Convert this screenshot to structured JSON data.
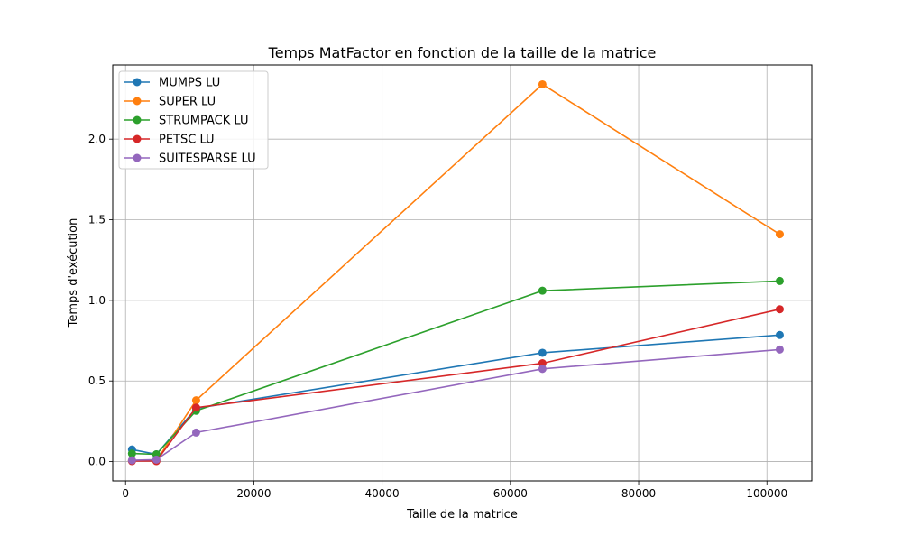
{
  "chart_data": {
    "type": "line",
    "title": "Temps MatFactor en fonction de la taille de la matrice",
    "xlabel": "Taille de la matrice",
    "ylabel": "Temps d'exécution",
    "xlim": [
      -2000,
      107000
    ],
    "ylim": [
      -0.12,
      2.46
    ],
    "xticks": [
      0,
      20000,
      40000,
      60000,
      80000,
      100000
    ],
    "xtick_labels": [
      "0",
      "20000",
      "40000",
      "60000",
      "80000",
      "100000"
    ],
    "yticks": [
      0.0,
      0.5,
      1.0,
      1.5,
      2.0
    ],
    "ytick_labels": [
      "0.0",
      "0.5",
      "1.0",
      "1.5",
      "2.0"
    ],
    "grid": true,
    "legend_position": "top-left",
    "x": [
      1000,
      4800,
      11000,
      65000,
      102000
    ],
    "series": [
      {
        "name": "MUMPS LU",
        "color": "#1f77b4",
        "values": [
          0.075,
          0.045,
          0.33,
          0.675,
          0.785
        ]
      },
      {
        "name": "SUPER LU",
        "color": "#ff7f0e",
        "values": [
          0.005,
          0.005,
          0.38,
          2.34,
          1.41
        ]
      },
      {
        "name": "STRUMPACK LU",
        "color": "#2ca02c",
        "values": [
          0.05,
          0.045,
          0.315,
          1.06,
          1.12
        ]
      },
      {
        "name": "PETSC LU",
        "color": "#d62728",
        "values": [
          0.003,
          0.003,
          0.335,
          0.61,
          0.945
        ]
      },
      {
        "name": "SUITESPARSE LU",
        "color": "#9467bd",
        "values": [
          0.008,
          0.012,
          0.18,
          0.575,
          0.695
        ]
      }
    ]
  }
}
